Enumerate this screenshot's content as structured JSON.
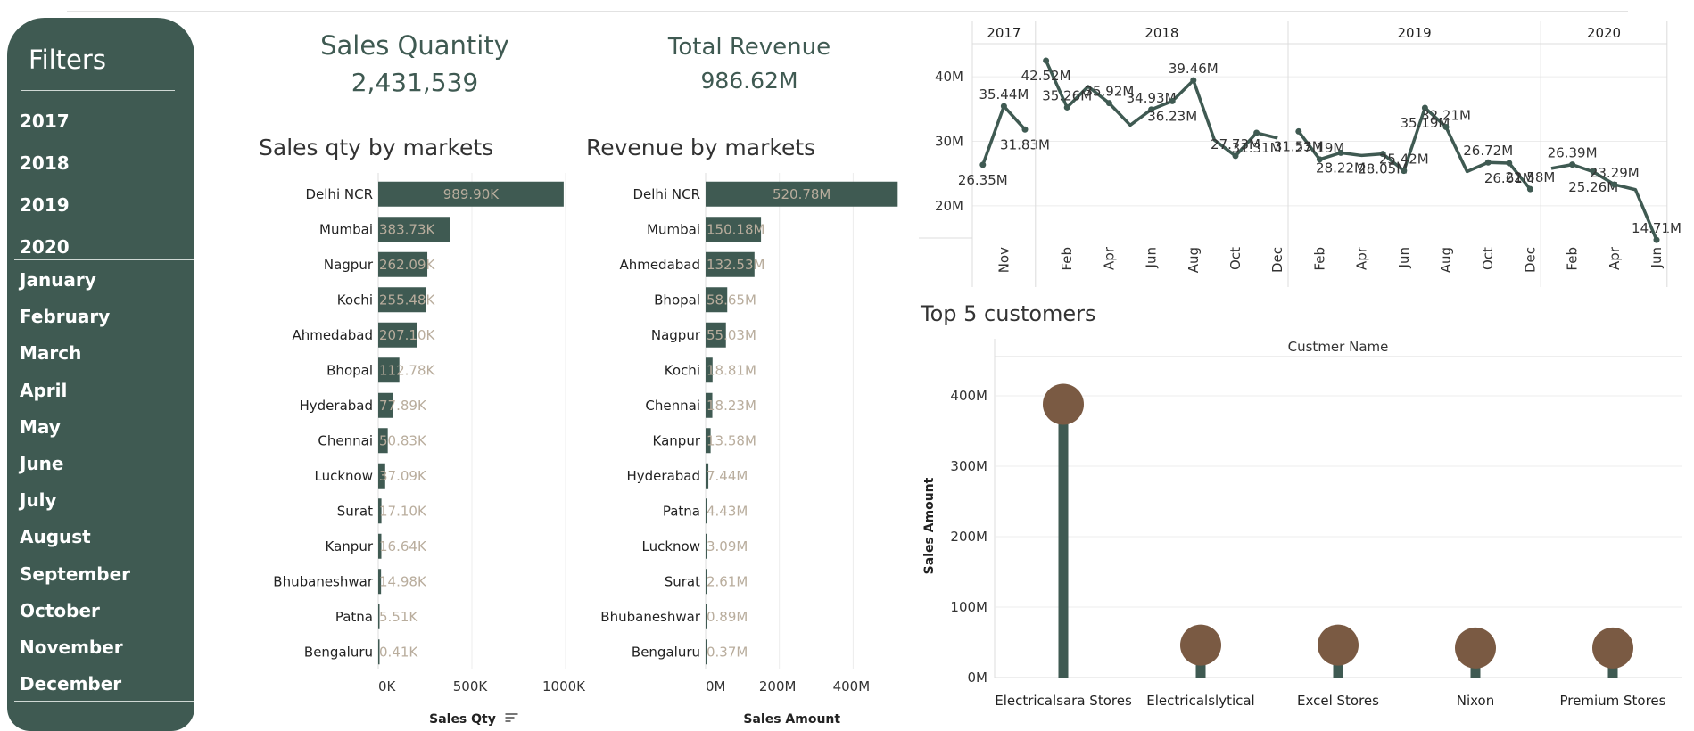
{
  "filters": {
    "title": "Filters",
    "years": [
      "2017",
      "2018",
      "2019",
      "2020"
    ],
    "months": [
      "January",
      "February",
      "March",
      "April",
      "May",
      "June",
      "July",
      "August",
      "September",
      "October",
      "November",
      "December"
    ]
  },
  "kpis": {
    "sales_quantity": {
      "label": "Sales Quantity",
      "value": "2,431,539"
    },
    "total_revenue": {
      "label": "Total Revenue",
      "value": "986.62M"
    }
  },
  "titles": {
    "sales_qty": "Sales qty by markets",
    "revenue": "Revenue by markets",
    "top5": "Top 5 customers"
  },
  "colors": {
    "primary": "#3f5a52",
    "customer_dot": "#7a5a43",
    "bar_label": "#b9ad9d",
    "grid": "#ececec"
  },
  "chart_data": [
    {
      "id": "sales_qty_by_markets",
      "type": "bar",
      "orientation": "horizontal",
      "title": "Sales qty by markets",
      "xlabel": "Sales Qty",
      "xlim": [
        0,
        1000000
      ],
      "xticks": [
        "0K",
        "500K",
        "1000K"
      ],
      "categories": [
        "Delhi NCR",
        "Mumbai",
        "Nagpur",
        "Kochi",
        "Ahmedabad",
        "Bhopal",
        "Hyderabad",
        "Chennai",
        "Lucknow",
        "Surat",
        "Kanpur",
        "Bhubaneshwar",
        "Patna",
        "Bengaluru"
      ],
      "values": [
        989900,
        383730,
        262090,
        255480,
        207100,
        112780,
        77890,
        50830,
        37090,
        17100,
        16640,
        14980,
        5510,
        410
      ],
      "labels": [
        "989.90K",
        "383.73K",
        "262.09K",
        "255.48K",
        "207.10K",
        "112.78K",
        "77.89K",
        "50.83K",
        "37.09K",
        "17.10K",
        "16.64K",
        "14.98K",
        "5.51K",
        "0.41K"
      ]
    },
    {
      "id": "revenue_by_markets",
      "type": "bar",
      "orientation": "horizontal",
      "title": "Revenue by markets",
      "xlabel": "Sales Amount",
      "xlim": [
        0,
        520
      ],
      "xticks": [
        "0M",
        "200M",
        "400M"
      ],
      "categories": [
        "Delhi NCR",
        "Mumbai",
        "Ahmedabad",
        "Bhopal",
        "Nagpur",
        "Kochi",
        "Chennai",
        "Kanpur",
        "Hyderabad",
        "Patna",
        "Lucknow",
        "Surat",
        "Bhubaneshwar",
        "Bengaluru"
      ],
      "values": [
        520.78,
        150.18,
        132.53,
        58.65,
        55.03,
        18.81,
        18.23,
        13.58,
        7.44,
        4.43,
        3.09,
        2.61,
        0.89,
        0.37
      ],
      "labels": [
        "520.78M",
        "150.18M",
        "132.53M",
        "58.65M",
        "55.03M",
        "18.81M",
        "18.23M",
        "13.58M",
        "7.44M",
        "4.43M",
        "3.09M",
        "2.61M",
        "0.89M",
        "0.37M"
      ]
    },
    {
      "id": "revenue_trend",
      "type": "line",
      "ylim": [
        15,
        45
      ],
      "yticks": [
        "40M",
        "30M",
        "20M"
      ],
      "panels": [
        {
          "year": "2017",
          "months": [
            "Oct",
            "Nov",
            "Dec"
          ],
          "values": [
            26.35,
            35.44,
            31.83
          ],
          "labels": [
            "26.35M",
            "35.44M",
            "31.83M"
          ],
          "ticks": [
            "Nov"
          ]
        },
        {
          "year": "2018",
          "months": [
            "Jan",
            "Feb",
            "Mar",
            "Apr",
            "May",
            "Jun",
            "Jul",
            "Aug",
            "Sep",
            "Oct",
            "Nov",
            "Dec"
          ],
          "values": [
            42.52,
            35.26,
            38.5,
            35.92,
            32.5,
            34.93,
            36.23,
            39.46,
            30.2,
            27.73,
            31.31,
            30.5
          ],
          "labels": [
            "42.52M",
            "35.26M",
            "",
            "35.92M",
            "",
            "34.93M",
            "36.23M",
            "39.46M",
            "",
            "27.73M",
            "31.31M",
            ""
          ],
          "ticks": [
            "Feb",
            "Apr",
            "Jun",
            "Aug",
            "Oct",
            "Dec"
          ]
        },
        {
          "year": "2019",
          "months": [
            "Jan",
            "Feb",
            "Mar",
            "Apr",
            "May",
            "Jun",
            "Jul",
            "Aug",
            "Sep",
            "Oct",
            "Nov",
            "Dec"
          ],
          "values": [
            31.53,
            27.19,
            28.22,
            27.8,
            28.05,
            25.42,
            35.19,
            32.21,
            25.3,
            26.72,
            26.61,
            22.58
          ],
          "labels": [
            "31.53M",
            "27.19M",
            "28.22M",
            "",
            "28.05M",
            "25.42M",
            "35.19M",
            "32.21M",
            "",
            "26.72M",
            "26.61M",
            "22.58M"
          ],
          "ticks": [
            "Feb",
            "Apr",
            "Jun",
            "Aug",
            "Oct",
            "Dec"
          ]
        },
        {
          "year": "2020",
          "months": [
            "Jan",
            "Feb",
            "Mar",
            "Apr",
            "May",
            "Jun"
          ],
          "values": [
            25.8,
            26.39,
            25.26,
            23.29,
            22.5,
            14.71
          ],
          "labels": [
            "",
            "26.39M",
            "25.26M",
            "23.29M",
            "",
            "14.71M"
          ],
          "ticks": [
            "Feb",
            "Apr",
            "Jun"
          ]
        }
      ]
    },
    {
      "id": "top5_customers",
      "type": "lollipop",
      "title": "Top 5 customers",
      "header": "Custmer Name",
      "ylabel": "Sales Amount",
      "ylim": [
        0,
        400
      ],
      "yticks": [
        "400M",
        "300M",
        "200M",
        "100M",
        "0M"
      ],
      "categories": [
        "Electricalsara Stores",
        "Electricalslytical",
        "Excel Stores",
        "Nixon",
        "Premium Stores"
      ],
      "values": [
        388,
        46,
        46,
        42,
        42
      ]
    }
  ]
}
